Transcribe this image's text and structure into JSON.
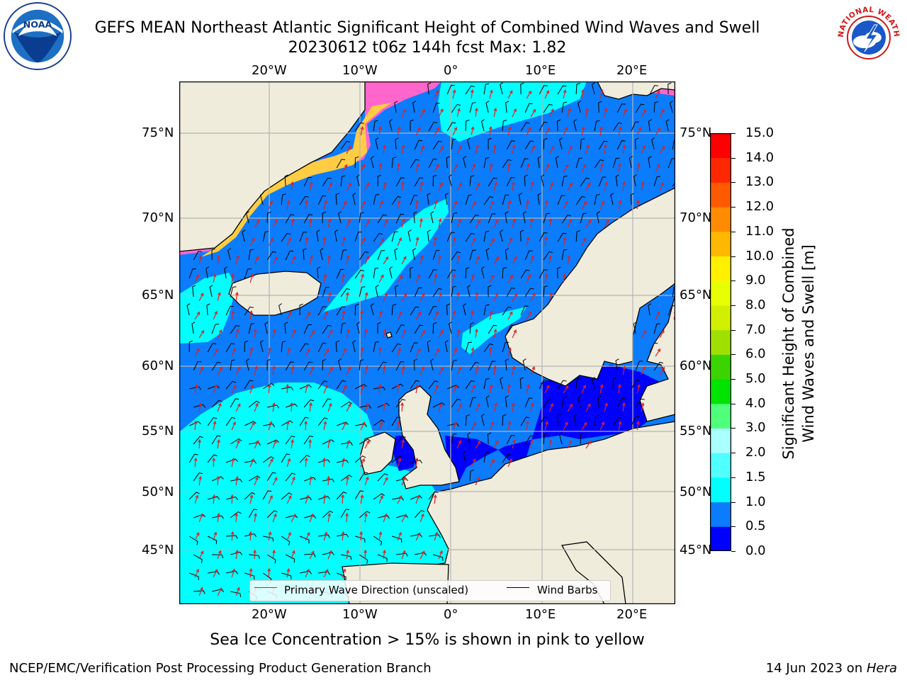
{
  "header": {
    "title_line1": "GEFS MEAN Northeast Atlantic Significant Height of Combined Wind Waves and Swell",
    "title_line2": "20230612 t06z 144h fcst   Max: 1.82"
  },
  "logos": {
    "left": {
      "icon": "noaa-logo-icon",
      "text": "NOAA"
    },
    "right": {
      "icon": "nws-logo-icon",
      "text": "NATIONAL WEATHER SERVICE"
    }
  },
  "map": {
    "lon_ticks": [
      "20°W",
      "10°W",
      "0°",
      "10°E",
      "20°E"
    ],
    "lat_ticks": [
      "75°N",
      "70°N",
      "65°N",
      "60°N",
      "55°N",
      "50°N",
      "45°N"
    ],
    "land_color": "#efecdc",
    "ocean_colors": {
      "0.0-0.5": "#0000ff",
      "0.5-1.0": "#0a7cfc",
      "1.0-1.5": "#00ffff",
      "sea_ice": "#ff66cc"
    }
  },
  "legend": {
    "wave_label": "Primary Wave Direction (unscaled)",
    "wave_color": "#e02020",
    "wind_label": "Wind Barbs",
    "wind_color": "#000000"
  },
  "colorbar": {
    "title_line1": "Significant Height of Combined",
    "title_line2": "Wind Waves and Swell [m]",
    "ticks": [
      "0.0",
      "0.5",
      "1.0",
      "1.5",
      "2.0",
      "3.0",
      "4.0",
      "5.0",
      "6.0",
      "7.0",
      "8.0",
      "9.0",
      "10.0",
      "11.0",
      "12.0",
      "13.0",
      "14.0",
      "15.0"
    ],
    "colors": [
      "#0000ff",
      "#0a7cfc",
      "#00ffff",
      "#50ffff",
      "#aaffff",
      "#50ff7a",
      "#00e400",
      "#3cd400",
      "#a0e000",
      "#d0f000",
      "#e8ff00",
      "#fff000",
      "#ffb800",
      "#ff8c00",
      "#ff5a00",
      "#ff2800",
      "#ff0000"
    ]
  },
  "footer": {
    "note": "Sea Ice Concentration > 15% is shown in pink to yellow",
    "left": "NCEP/EMC/Verification Post Processing Product Generation Branch",
    "right_prefix": "14 Jun 2023 on ",
    "right_host": "Hera"
  }
}
